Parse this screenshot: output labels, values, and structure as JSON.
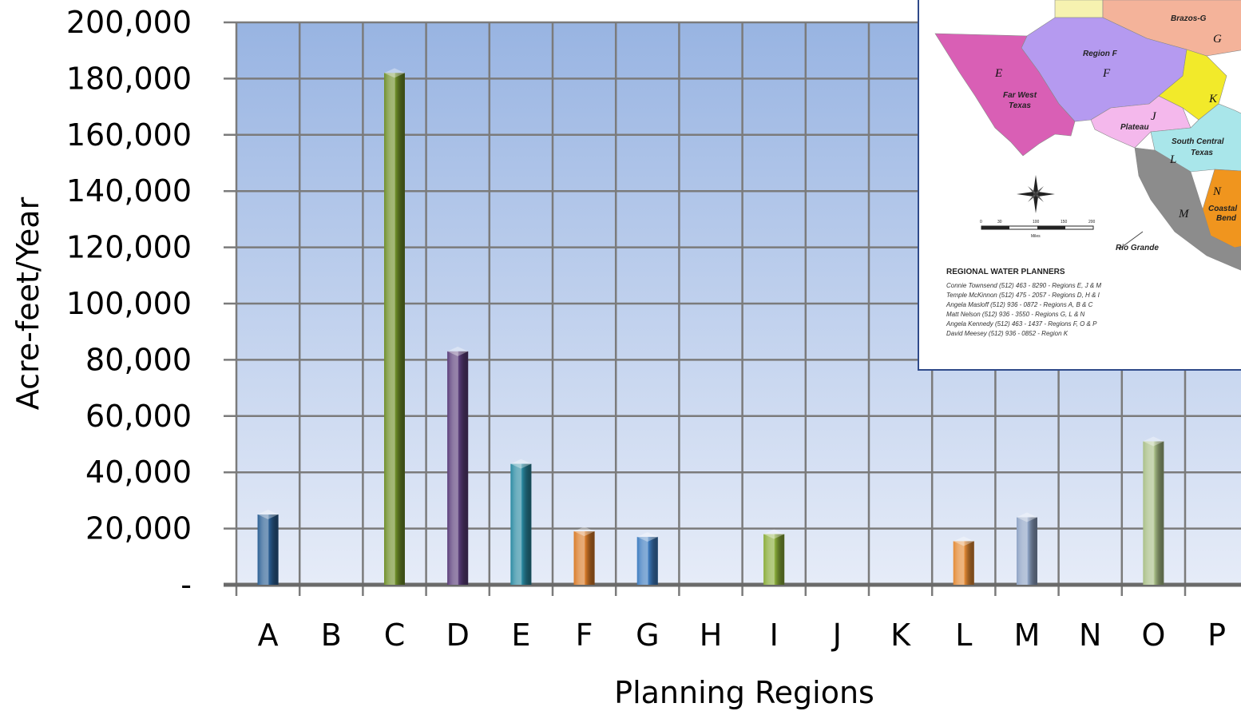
{
  "chart_data": {
    "type": "bar",
    "title": "",
    "xlabel": "Planning Regions",
    "ylabel": "Acre-feet/Year",
    "ylim": [
      0,
      200000
    ],
    "yticks": [
      0,
      20000,
      40000,
      60000,
      80000,
      100000,
      120000,
      140000,
      160000,
      180000,
      200000
    ],
    "ytick_labels": [
      "-",
      "20,000",
      "40,000",
      "60,000",
      "80,000",
      "100,000",
      "120,000",
      "140,000",
      "160,000",
      "180,000",
      "200,000"
    ],
    "grid": true,
    "legend": "none",
    "categories": [
      "A",
      "B",
      "C",
      "D",
      "E",
      "F",
      "G",
      "H",
      "I",
      "J",
      "K",
      "L",
      "M",
      "N",
      "O",
      "P"
    ],
    "values": [
      25000,
      0,
      182000,
      83000,
      43000,
      19000,
      17000,
      0,
      18000,
      0,
      0,
      15500,
      24000,
      0,
      51000,
      0
    ],
    "bar_colors": [
      "#2b5f94",
      "#2b5f94",
      "#6f8f2a",
      "#5a3d7a",
      "#2a8aa2",
      "#d97b28",
      "#3e7cc0",
      "#3e7cc0",
      "#8aad3a",
      "#8aad3a",
      "#8aad3a",
      "#e38a35",
      "#8ea3c5",
      "#8ea3c5",
      "#a9bf87",
      "#a9bf87"
    ]
  },
  "inset": {
    "map_labels": {
      "brazos": "Brazos-G",
      "g": "G",
      "region_f": "Region F",
      "f": "F",
      "e": "E",
      "far_west_1": "Far West",
      "far_west_2": "Texas",
      "j": "J",
      "plateau": "Plateau",
      "k": "K",
      "south_central_1": "South Central",
      "south_central_2": "Texas",
      "l": "L",
      "n": "N",
      "m": "M",
      "coastal_1": "Coastal",
      "coastal_2": "Bend",
      "rio_grande": "Rio Grande",
      "scale_0": "0",
      "scale_30": "30",
      "scale_100": "100",
      "scale_150": "150",
      "scale_200": "200",
      "scale_unit": "Miles"
    },
    "planners_title": "REGIONAL WATER PLANNERS",
    "planners": [
      "Connie Townsend (512) 463 - 8290 - Regions E, J & M",
      "Temple McKinnon (512) 475 - 2057 - Regions D, H & I",
      "Angela Masloff (512) 936 - 0872 - Regions A, B & C",
      "Matt Nelson (512) 936 - 3550 - Regions G, L & N",
      "Angela Kennedy (512) 463 - 1437 - Regions F, O & P",
      "David Meesey (512) 936 - 0852 - Region K"
    ],
    "colors": {
      "far_west": "#d95fb5",
      "region_f": "#b59af0",
      "plateau": "#f4b8ec",
      "brazos": "#f4b39a",
      "region_k": "#f2ea2a",
      "south_central": "#a9e6ea",
      "coastal": "#f0951e",
      "rio_grande": "#8c8c8c",
      "panhandle": "#f6f2b0"
    }
  }
}
